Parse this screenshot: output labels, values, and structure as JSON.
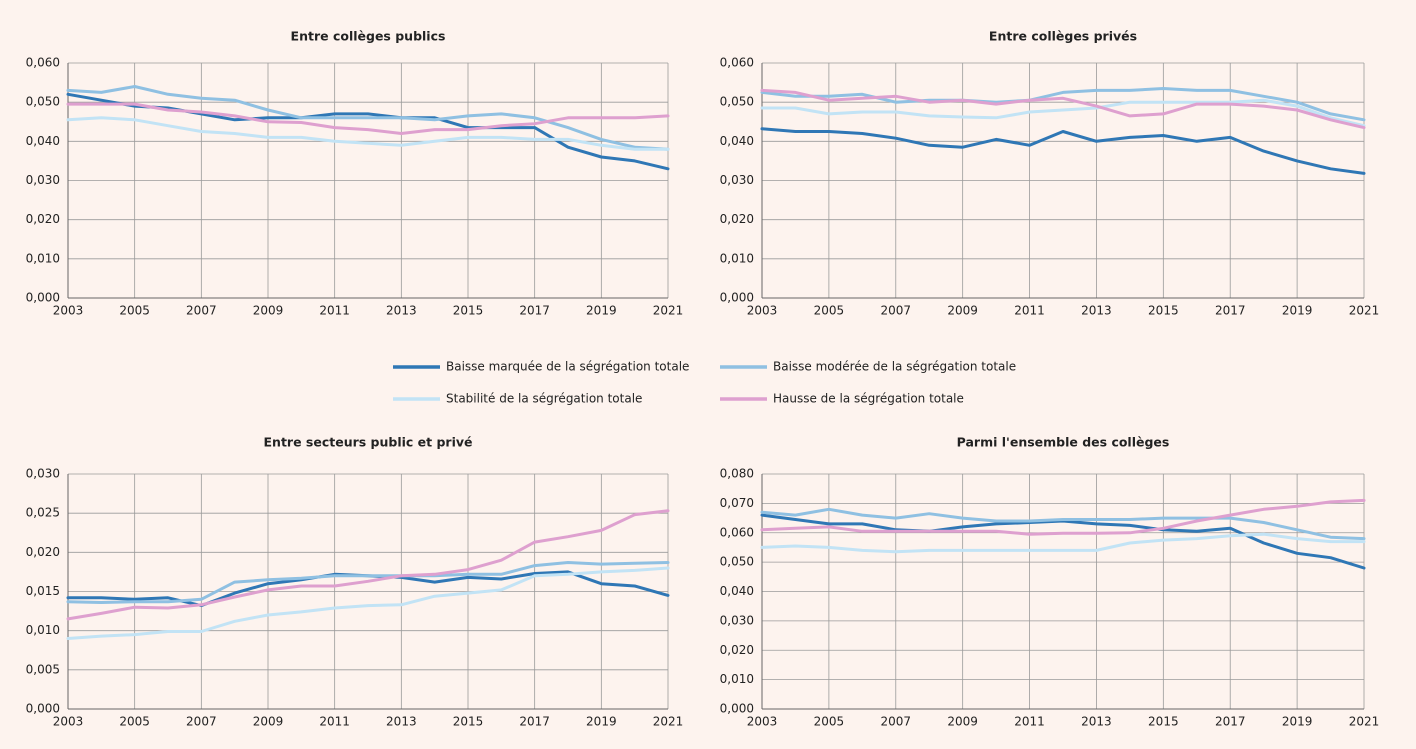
{
  "chart_data": [
    {
      "type": "line",
      "title": "Entre collèges publics",
      "x": [
        2003,
        2004,
        2005,
        2006,
        2007,
        2008,
        2009,
        2010,
        2011,
        2012,
        2013,
        2014,
        2015,
        2016,
        2017,
        2018,
        2019,
        2020,
        2021
      ],
      "xlim": [
        2003,
        2021
      ],
      "xticks": [
        2003,
        2005,
        2007,
        2009,
        2011,
        2013,
        2015,
        2017,
        2019,
        2021
      ],
      "ylim": [
        0,
        0.06
      ],
      "yticks": [
        {
          "value": 0,
          "label": "0,000"
        },
        {
          "value": 0.01,
          "label": "0,010"
        },
        {
          "value": 0.02,
          "label": "0,020"
        },
        {
          "value": 0.03,
          "label": "0,030"
        },
        {
          "value": 0.04,
          "label": "0,040"
        },
        {
          "value": 0.05,
          "label": "0,050"
        },
        {
          "value": 0.06,
          "label": "0,060"
        }
      ],
      "grid": true,
      "series": [
        {
          "name": "Baisse marquée de la ségrégation totale",
          "color": "#2f77b5",
          "values": [
            0.052,
            0.0505,
            0.049,
            0.0485,
            0.047,
            0.0455,
            0.046,
            0.046,
            0.047,
            0.047,
            0.046,
            0.046,
            0.0435,
            0.0435,
            0.0435,
            0.0385,
            0.036,
            0.035,
            0.033
          ]
        },
        {
          "name": "Baisse modérée de la ségrégation totale",
          "color": "#8fc0e2",
          "values": [
            0.053,
            0.0525,
            0.054,
            0.052,
            0.051,
            0.0505,
            0.048,
            0.046,
            0.046,
            0.046,
            0.046,
            0.0455,
            0.0465,
            0.047,
            0.046,
            0.0435,
            0.0405,
            0.0385,
            0.038
          ]
        },
        {
          "name": "Stabilité de la ségrégation totale",
          "color": "#c2e3f5",
          "values": [
            0.0455,
            0.046,
            0.0455,
            0.044,
            0.0425,
            0.042,
            0.041,
            0.041,
            0.04,
            0.0395,
            0.039,
            0.04,
            0.041,
            0.041,
            0.0405,
            0.0405,
            0.039,
            0.038,
            0.038
          ]
        },
        {
          "name": "Hausse de la ségrégation totale",
          "color": "#dea0cf",
          "values": [
            0.0495,
            0.0495,
            0.0495,
            0.048,
            0.0475,
            0.0465,
            0.045,
            0.0448,
            0.0435,
            0.043,
            0.042,
            0.043,
            0.043,
            0.044,
            0.0445,
            0.046,
            0.046,
            0.046,
            0.0465
          ]
        }
      ]
    },
    {
      "type": "line",
      "title": "Entre collèges privés",
      "x": [
        2003,
        2004,
        2005,
        2006,
        2007,
        2008,
        2009,
        2010,
        2011,
        2012,
        2013,
        2014,
        2015,
        2016,
        2017,
        2018,
        2019,
        2020,
        2021
      ],
      "xlim": [
        2003,
        2021
      ],
      "xticks": [
        2003,
        2005,
        2007,
        2009,
        2011,
        2013,
        2015,
        2017,
        2019,
        2021
      ],
      "ylim": [
        0,
        0.06
      ],
      "yticks": [
        {
          "value": 0,
          "label": "0,000"
        },
        {
          "value": 0.01,
          "label": "0,010"
        },
        {
          "value": 0.02,
          "label": "0,020"
        },
        {
          "value": 0.03,
          "label": "0,030"
        },
        {
          "value": 0.04,
          "label": "0,040"
        },
        {
          "value": 0.05,
          "label": "0,050"
        },
        {
          "value": 0.06,
          "label": "0,060"
        }
      ],
      "grid": true,
      "series": [
        {
          "name": "Baisse marquée de la ségrégation totale",
          "color": "#2f77b5",
          "values": [
            0.0432,
            0.0425,
            0.0425,
            0.042,
            0.0408,
            0.039,
            0.0385,
            0.0405,
            0.039,
            0.0425,
            0.04,
            0.041,
            0.0415,
            0.04,
            0.041,
            0.0375,
            0.035,
            0.033,
            0.0318
          ]
        },
        {
          "name": "Baisse modérée de la ségrégation totale",
          "color": "#8fc0e2",
          "values": [
            0.0525,
            0.0515,
            0.0515,
            0.052,
            0.05,
            0.0505,
            0.0505,
            0.05,
            0.0505,
            0.0525,
            0.053,
            0.053,
            0.0535,
            0.053,
            0.053,
            0.0515,
            0.05,
            0.047,
            0.0455
          ]
        },
        {
          "name": "Stabilité de la ségrégation totale",
          "color": "#c2e3f5",
          "values": [
            0.0485,
            0.0485,
            0.047,
            0.0475,
            0.0475,
            0.0465,
            0.0462,
            0.046,
            0.0475,
            0.048,
            0.0485,
            0.05,
            0.05,
            0.05,
            0.05,
            0.0505,
            0.049,
            0.046,
            0.044
          ]
        },
        {
          "name": "Hausse de la ségrégation totale",
          "color": "#dea0cf",
          "values": [
            0.053,
            0.0525,
            0.0505,
            0.051,
            0.0515,
            0.05,
            0.0505,
            0.0495,
            0.0505,
            0.051,
            0.049,
            0.0465,
            0.047,
            0.0495,
            0.0495,
            0.049,
            0.048,
            0.0455,
            0.0435
          ]
        }
      ]
    },
    {
      "type": "line",
      "title": "Entre secteurs public et privé",
      "x": [
        2003,
        2004,
        2005,
        2006,
        2007,
        2008,
        2009,
        2010,
        2011,
        2012,
        2013,
        2014,
        2015,
        2016,
        2017,
        2018,
        2019,
        2020,
        2021
      ],
      "xlim": [
        2003,
        2021
      ],
      "xticks": [
        2003,
        2005,
        2007,
        2009,
        2011,
        2013,
        2015,
        2017,
        2019,
        2021
      ],
      "ylim": [
        0,
        0.03
      ],
      "yticks": [
        {
          "value": 0,
          "label": "0,000"
        },
        {
          "value": 0.005,
          "label": "0,005"
        },
        {
          "value": 0.01,
          "label": "0,010"
        },
        {
          "value": 0.015,
          "label": "0,015"
        },
        {
          "value": 0.02,
          "label": "0,020"
        },
        {
          "value": 0.025,
          "label": "0,025"
        },
        {
          "value": 0.03,
          "label": "0,030"
        }
      ],
      "grid": true,
      "series": [
        {
          "name": "Baisse marquée de la ségrégation totale",
          "color": "#2f77b5",
          "values": [
            0.0142,
            0.0142,
            0.014,
            0.0142,
            0.0132,
            0.0148,
            0.016,
            0.0165,
            0.0172,
            0.017,
            0.0168,
            0.0162,
            0.0168,
            0.0166,
            0.0173,
            0.0175,
            0.016,
            0.0157,
            0.0145
          ]
        },
        {
          "name": "Baisse modérée de la ségrégation totale",
          "color": "#8fc0e2",
          "values": [
            0.0137,
            0.0136,
            0.0137,
            0.0137,
            0.014,
            0.0162,
            0.0165,
            0.0167,
            0.017,
            0.017,
            0.017,
            0.017,
            0.0172,
            0.0172,
            0.0183,
            0.0187,
            0.0185,
            0.0186,
            0.0187
          ]
        },
        {
          "name": "Stabilité de la ségrégation totale",
          "color": "#c2e3f5",
          "values": [
            0.009,
            0.0093,
            0.0095,
            0.0099,
            0.0099,
            0.0112,
            0.012,
            0.0124,
            0.0129,
            0.0132,
            0.0133,
            0.0144,
            0.0148,
            0.0152,
            0.017,
            0.0172,
            0.0175,
            0.0177,
            0.018
          ]
        },
        {
          "name": "Hausse de la ségrégation totale",
          "color": "#dea0cf",
          "values": [
            0.0115,
            0.0122,
            0.013,
            0.0129,
            0.0133,
            0.0143,
            0.0152,
            0.0157,
            0.0157,
            0.0163,
            0.017,
            0.0172,
            0.0178,
            0.019,
            0.0213,
            0.022,
            0.0228,
            0.0248,
            0.0253
          ]
        }
      ]
    },
    {
      "type": "line",
      "title": "Parmi l'ensemble des collèges",
      "x": [
        2003,
        2004,
        2005,
        2006,
        2007,
        2008,
        2009,
        2010,
        2011,
        2012,
        2013,
        2014,
        2015,
        2016,
        2017,
        2018,
        2019,
        2020,
        2021
      ],
      "xlim": [
        2003,
        2021
      ],
      "xticks": [
        2003,
        2005,
        2007,
        2009,
        2011,
        2013,
        2015,
        2017,
        2019,
        2021
      ],
      "ylim": [
        0,
        0.08
      ],
      "yticks": [
        {
          "value": 0,
          "label": "0,000"
        },
        {
          "value": 0.01,
          "label": "0,010"
        },
        {
          "value": 0.02,
          "label": "0,020"
        },
        {
          "value": 0.03,
          "label": "0,030"
        },
        {
          "value": 0.04,
          "label": "0,040"
        },
        {
          "value": 0.05,
          "label": "0,050"
        },
        {
          "value": 0.06,
          "label": "0,060"
        },
        {
          "value": 0.07,
          "label": "0,070"
        },
        {
          "value": 0.08,
          "label": "0,080"
        }
      ],
      "grid": true,
      "series": [
        {
          "name": "Baisse marquée de la ségrégation totale",
          "color": "#2f77b5",
          "values": [
            0.066,
            0.0645,
            0.063,
            0.063,
            0.061,
            0.0605,
            0.062,
            0.063,
            0.0635,
            0.064,
            0.063,
            0.0625,
            0.061,
            0.0605,
            0.0615,
            0.0565,
            0.053,
            0.0515,
            0.048
          ]
        },
        {
          "name": "Baisse modérée de la ségrégation totale",
          "color": "#8fc0e2",
          "values": [
            0.067,
            0.066,
            0.068,
            0.066,
            0.065,
            0.0665,
            0.065,
            0.064,
            0.064,
            0.0645,
            0.0645,
            0.0645,
            0.065,
            0.065,
            0.065,
            0.0635,
            0.061,
            0.0585,
            0.058
          ]
        },
        {
          "name": "Stabilité de la ségrégation totale",
          "color": "#c2e3f5",
          "values": [
            0.055,
            0.0555,
            0.055,
            0.054,
            0.0535,
            0.054,
            0.054,
            0.054,
            0.054,
            0.054,
            0.054,
            0.0565,
            0.0575,
            0.058,
            0.059,
            0.0595,
            0.058,
            0.057,
            0.057
          ]
        },
        {
          "name": "Hausse de la ségrégation totale",
          "color": "#dea0cf",
          "values": [
            0.061,
            0.0615,
            0.062,
            0.0605,
            0.0605,
            0.0605,
            0.0605,
            0.0605,
            0.0595,
            0.0598,
            0.0598,
            0.06,
            0.0615,
            0.064,
            0.066,
            0.068,
            0.069,
            0.0705,
            0.071
          ]
        }
      ]
    }
  ]
}
